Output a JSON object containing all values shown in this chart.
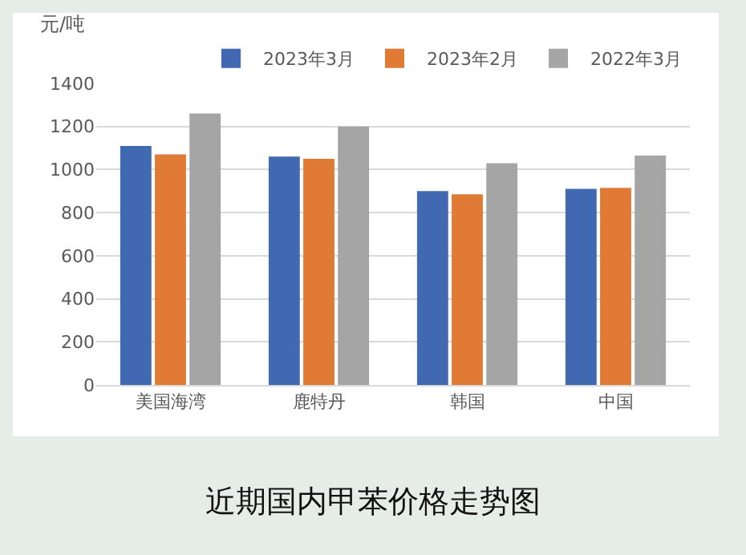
{
  "chart_data": {
    "type": "bar",
    "title": "近期国内甲苯价格走势图",
    "ylabel": "元/吨",
    "categories": [
      "美国海湾",
      "鹿特丹",
      "韩国",
      "中国"
    ],
    "series": [
      {
        "name": "2023年3月",
        "color": "#4169b1",
        "values": [
          1110,
          1060,
          900,
          910
        ]
      },
      {
        "name": "2023年2月",
        "color": "#e07a34",
        "values": [
          1070,
          1050,
          885,
          915
        ]
      },
      {
        "name": "2022年3月",
        "color": "#a5a5a5",
        "values": [
          1260,
          1200,
          1030,
          1065
        ]
      }
    ],
    "ylim": [
      0,
      1400
    ],
    "yticks": [
      0,
      200,
      400,
      600,
      800,
      1000,
      1200,
      1400
    ],
    "grid": "y",
    "legend": "top right"
  }
}
